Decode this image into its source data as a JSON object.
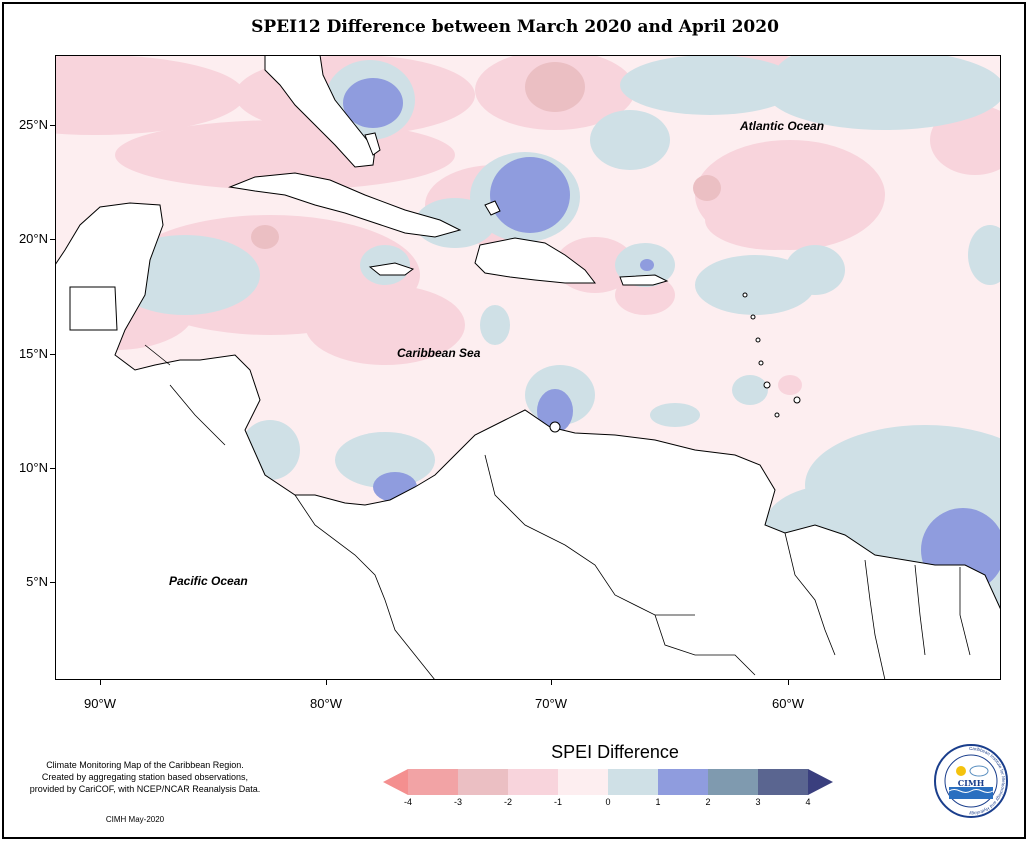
{
  "title": "SPEI12 Difference between March 2020 and April 2020",
  "map": {
    "labels": {
      "atlantic": "Atlantic Ocean",
      "caribbean": "Caribbean Sea",
      "pacific": "Pacific Ocean"
    },
    "lat_ticks": [
      "25°N",
      "20°N",
      "15°N",
      "10°N",
      "5°N"
    ],
    "lon_ticks": [
      "90°W",
      "80°W",
      "70°W",
      "60°W"
    ],
    "lon_range": [
      -92,
      -50
    ],
    "lat_range": [
      1,
      28.5
    ]
  },
  "legend": {
    "title": "SPEI Difference",
    "ticks": [
      "-4",
      "-3",
      "-2",
      "-1",
      "0",
      "1",
      "2",
      "3",
      "4"
    ],
    "colors": [
      "#f48f8f",
      "#f2a3a5",
      "#ebbfc3",
      "#f8d4dc",
      "#fdeef0",
      "#cfe0e6",
      "#8f9cde",
      "#7f9aaf",
      "#5a6590",
      "#3a3f7e"
    ]
  },
  "footer": {
    "line1": "Climate Monitoring Map of the Caribbean Region.",
    "line2": "Created by aggregating station based observations,",
    "line3": "provided by CariCOF, with NCEP/NCAR Reanalysis Data.",
    "date": "CIMH May-2020"
  },
  "logo": {
    "name": "CIMH",
    "ring_text": "Caribbean Institute for Meteorology and Hydrology"
  }
}
